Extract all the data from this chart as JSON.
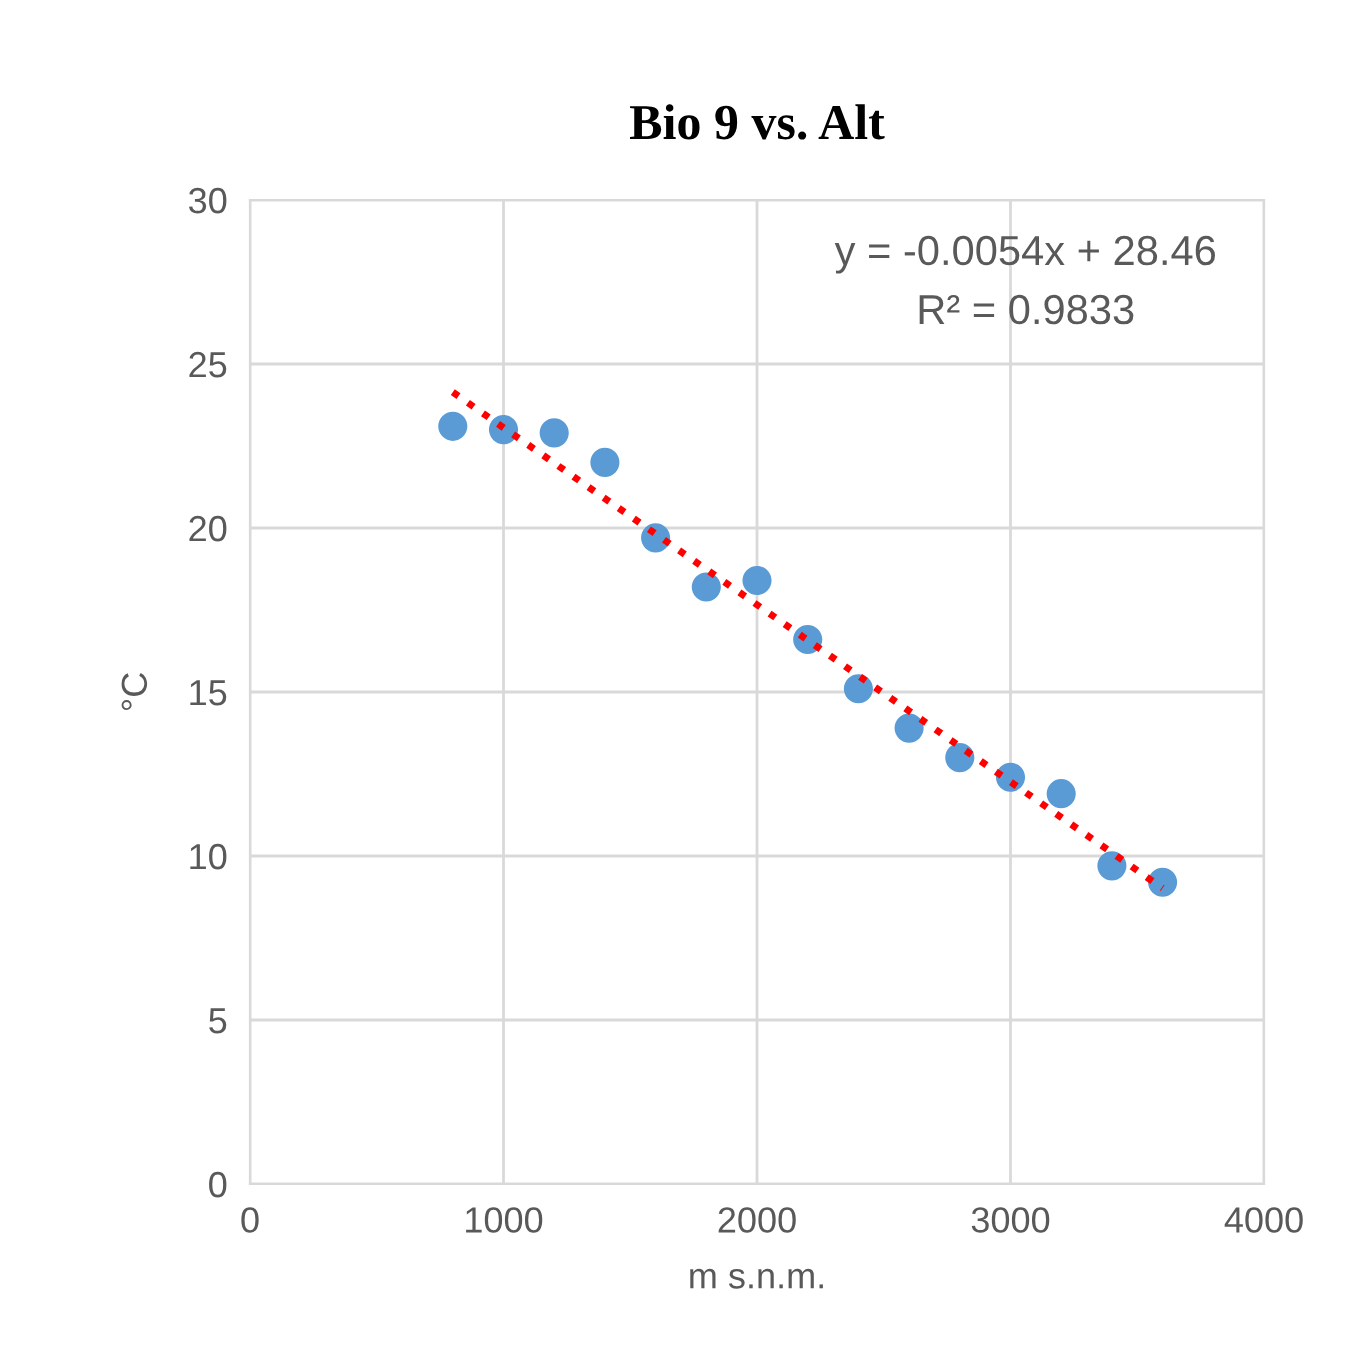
{
  "chart_data": {
    "type": "scatter",
    "title": "Bio 9 vs. Alt",
    "xlabel": "m s.n.m.",
    "ylabel": "°C",
    "x": [
      800,
      1000,
      1200,
      1400,
      1600,
      1800,
      2000,
      2200,
      2400,
      2600,
      2800,
      3000,
      3200,
      3400,
      3600
    ],
    "series": [
      {
        "type": "scatter",
        "color": "#5b9bd5",
        "marker": "circle",
        "values": [
          23.1,
          23.0,
          22.9,
          22.0,
          19.7,
          18.2,
          18.4,
          16.6,
          15.1,
          13.9,
          13.0,
          12.4,
          11.9,
          9.7,
          9.2
        ]
      },
      {
        "type": "line",
        "color": "#ff0000",
        "line_style": "dotted",
        "marker": "none",
        "x": [
          800,
          3600
        ],
        "values": [
          24.14,
          9.02
        ]
      }
    ],
    "annotations": [
      "y = -0.0054x + 28.46",
      "R² = 0.9833"
    ],
    "xlim": [
      0,
      4000
    ],
    "xticks": [
      0,
      1000,
      2000,
      3000,
      4000
    ],
    "ylim": [
      0,
      30
    ],
    "yticks": [
      0,
      5,
      10,
      15,
      20,
      25,
      30
    ],
    "grid": true,
    "legend": false
  }
}
